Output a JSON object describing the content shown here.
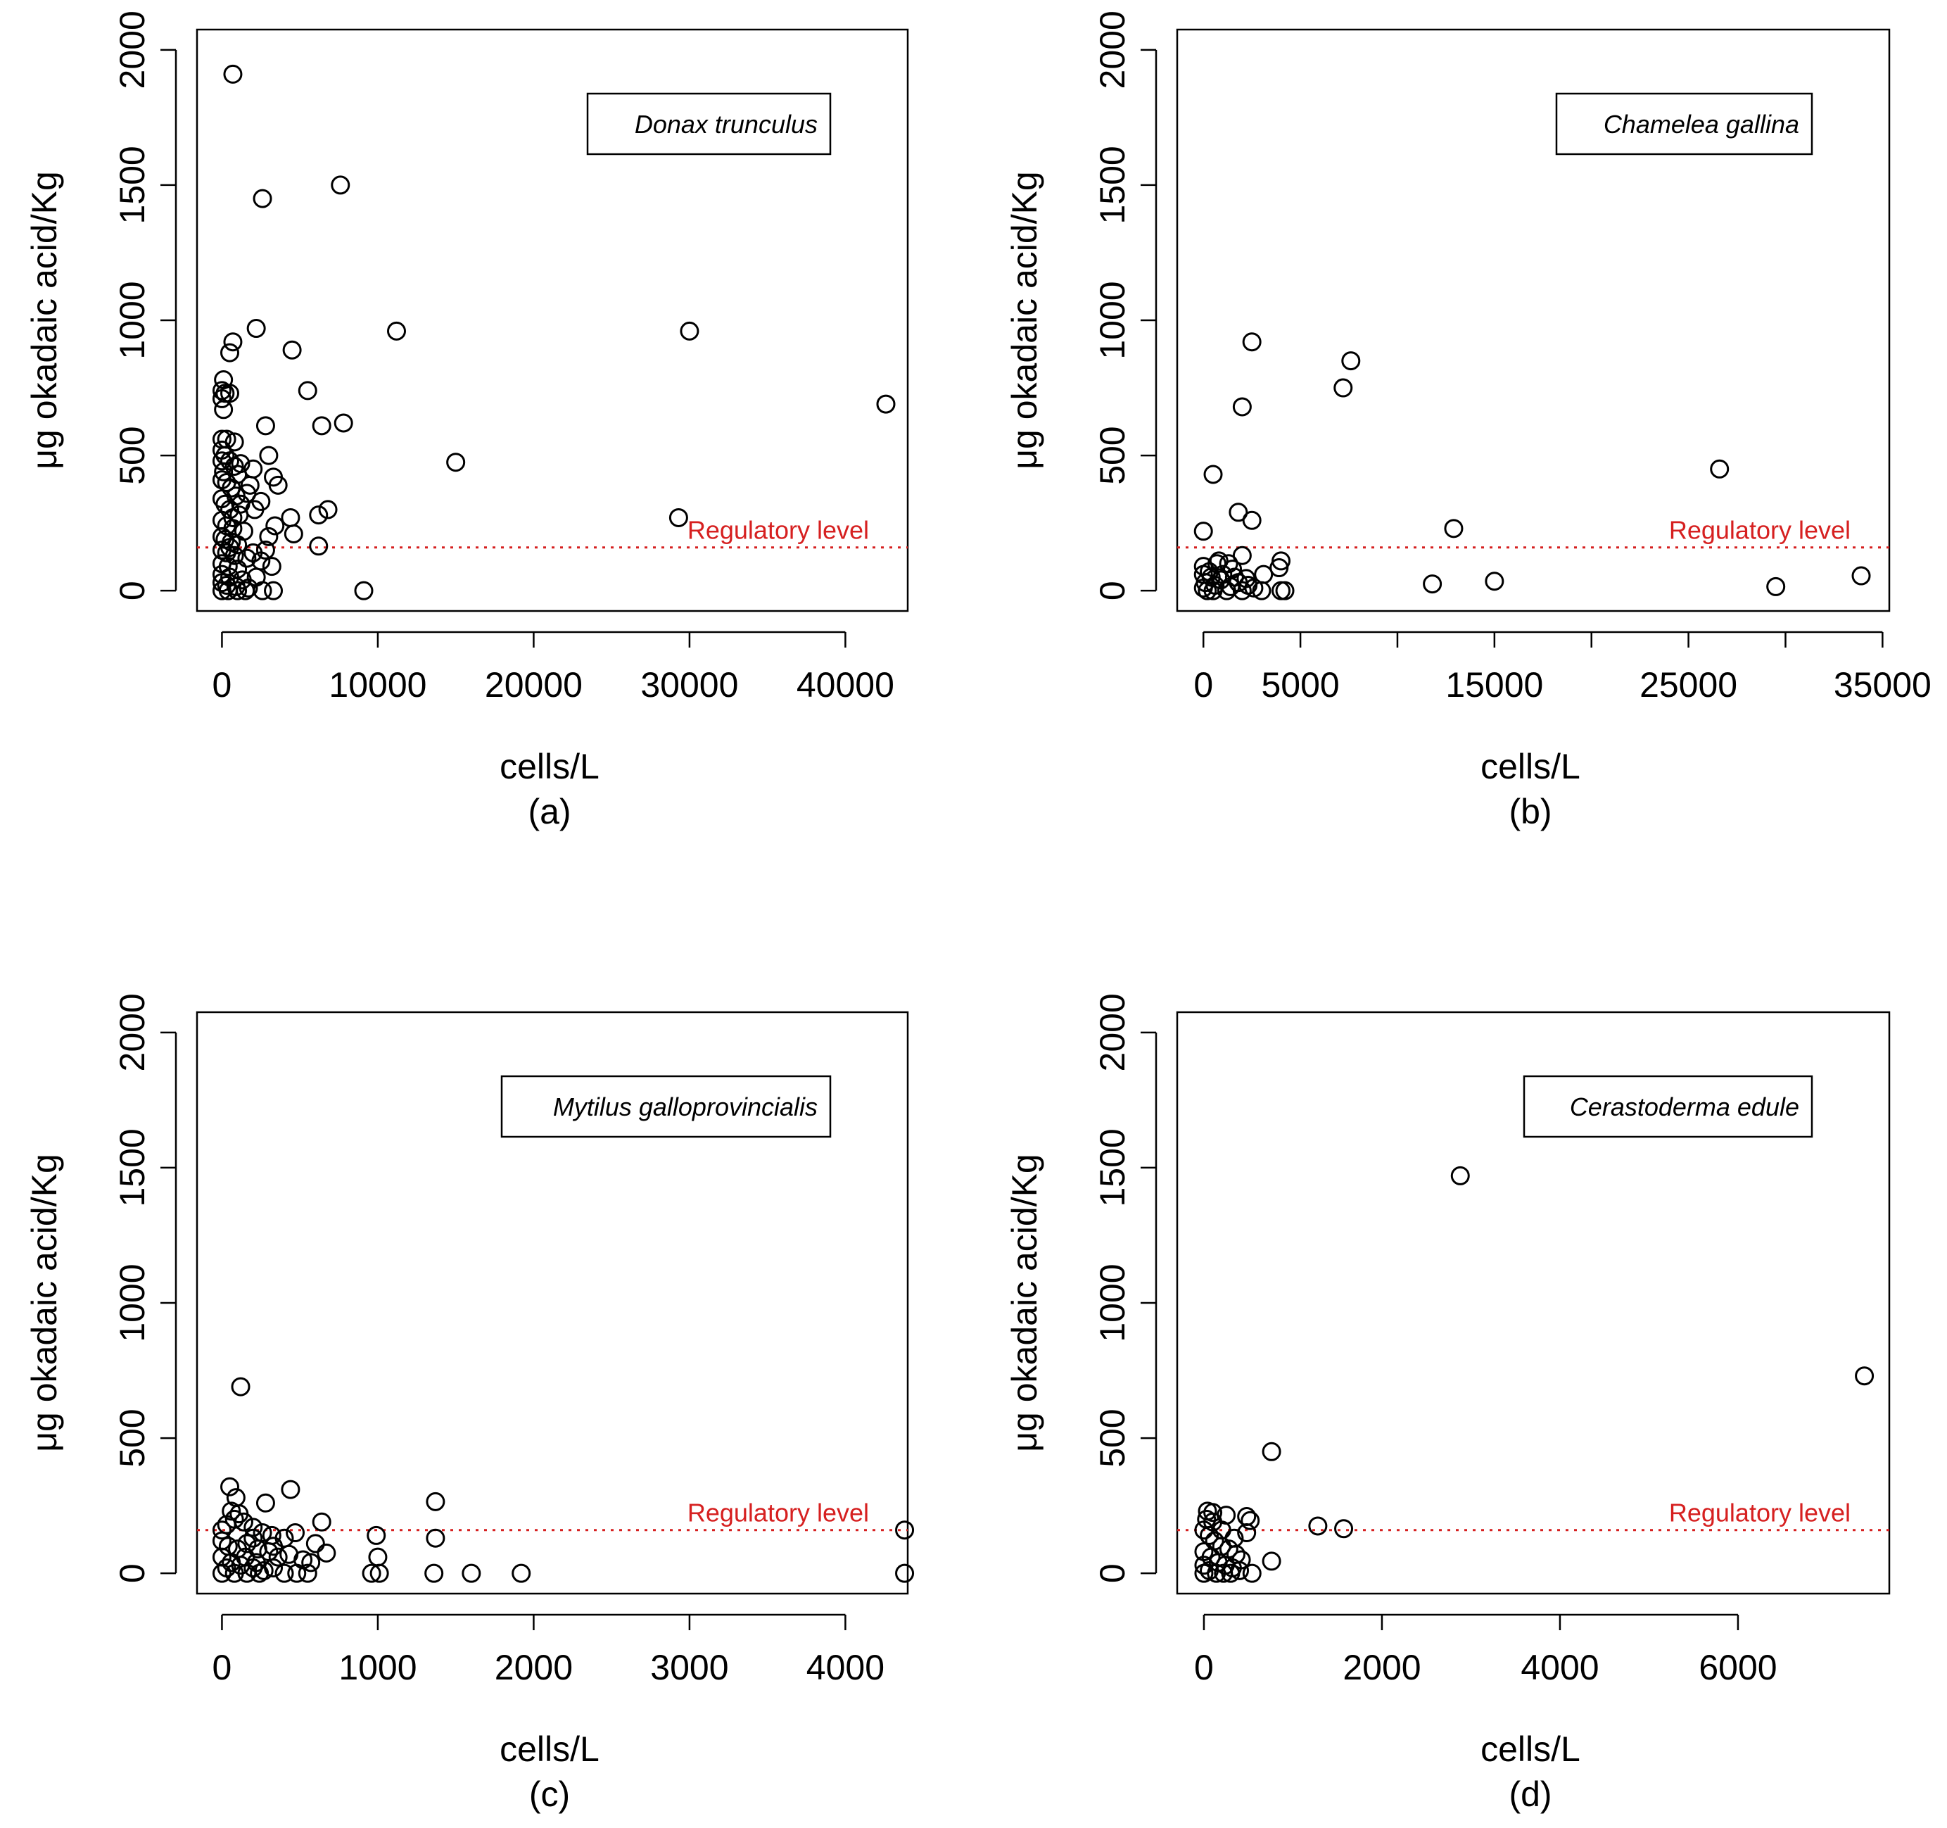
{
  "figure": {
    "y_axis_title": "μg okadaic acid/Kg",
    "x_axis_title": "cells/L",
    "regulatory_label": "Regulatory level",
    "regulatory_value": 160,
    "colors": {
      "points": "#000000",
      "regulatory": "#d62020"
    }
  },
  "chart_data": [
    {
      "id": "a",
      "panel_label": "(a)",
      "type": "scatter",
      "species": "Donax trunculus",
      "xlabel": "cells/L",
      "ylabel": "μg okadaic acid/Kg",
      "xlim": [
        -1600,
        44000
      ],
      "ylim": [
        -75,
        2075
      ],
      "xticks": [
        0,
        10000,
        20000,
        30000,
        40000
      ],
      "yticks": [
        0,
        500,
        1000,
        1500,
        2000
      ],
      "regulatory_level": 160,
      "points": [
        [
          700,
          1910
        ],
        [
          2600,
          1450
        ],
        [
          7600,
          1500
        ],
        [
          2200,
          970
        ],
        [
          700,
          920
        ],
        [
          500,
          880
        ],
        [
          4500,
          890
        ],
        [
          11200,
          960
        ],
        [
          30000,
          960
        ],
        [
          42600,
          690
        ],
        [
          5500,
          740
        ],
        [
          100,
          780
        ],
        [
          0,
          740
        ],
        [
          200,
          730
        ],
        [
          500,
          730
        ],
        [
          0,
          710
        ],
        [
          100,
          670
        ],
        [
          2800,
          610
        ],
        [
          6400,
          610
        ],
        [
          7800,
          620
        ],
        [
          0,
          560
        ],
        [
          300,
          560
        ],
        [
          800,
          550
        ],
        [
          3000,
          500
        ],
        [
          15000,
          475
        ],
        [
          1200,
          470
        ],
        [
          2000,
          450
        ],
        [
          3300,
          420
        ],
        [
          3600,
          390
        ],
        [
          1800,
          390
        ],
        [
          6800,
          300
        ],
        [
          6200,
          280
        ],
        [
          4400,
          270
        ],
        [
          29300,
          270
        ],
        [
          3400,
          240
        ],
        [
          4600,
          210
        ],
        [
          6200,
          165
        ],
        [
          9100,
          0
        ],
        [
          2500,
          330
        ],
        [
          1600,
          360
        ],
        [
          2100,
          300
        ],
        [
          0,
          520
        ],
        [
          200,
          500
        ],
        [
          500,
          480
        ],
        [
          800,
          460
        ],
        [
          1000,
          430
        ],
        [
          0,
          410
        ],
        [
          300,
          400
        ],
        [
          600,
          380
        ],
        [
          900,
          350
        ],
        [
          0,
          340
        ],
        [
          200,
          320
        ],
        [
          500,
          300
        ],
        [
          1100,
          280
        ],
        [
          0,
          260
        ],
        [
          300,
          240
        ],
        [
          700,
          230
        ],
        [
          1400,
          220
        ],
        [
          0,
          200
        ],
        [
          200,
          190
        ],
        [
          600,
          180
        ],
        [
          1000,
          170
        ],
        [
          0,
          150
        ],
        [
          300,
          140
        ],
        [
          800,
          130
        ],
        [
          1600,
          120
        ],
        [
          2500,
          110
        ],
        [
          0,
          100
        ],
        [
          400,
          90
        ],
        [
          1000,
          80
        ],
        [
          3200,
          90
        ],
        [
          0,
          60
        ],
        [
          500,
          50
        ],
        [
          1300,
          40
        ],
        [
          2200,
          50
        ],
        [
          0,
          30
        ],
        [
          300,
          20
        ],
        [
          900,
          15
        ],
        [
          1700,
          10
        ],
        [
          2600,
          0
        ],
        [
          3300,
          0
        ],
        [
          0,
          0
        ],
        [
          400,
          0
        ],
        [
          1000,
          0
        ],
        [
          1500,
          0
        ],
        [
          3000,
          200
        ],
        [
          2800,
          150
        ],
        [
          2000,
          140
        ],
        [
          100,
          440
        ],
        [
          700,
          270
        ],
        [
          1200,
          320
        ],
        [
          0,
          480
        ],
        [
          500,
          160
        ]
      ]
    },
    {
      "id": "b",
      "panel_label": "(b)",
      "type": "scatter",
      "species": "Chamelea gallina",
      "xlabel": "cells/L",
      "ylabel": "μg okadaic acid/Kg",
      "xlim": [
        -1350,
        35350
      ],
      "ylim": [
        -75,
        2075
      ],
      "xticks": [
        0,
        5000,
        10000,
        15000,
        20000,
        25000,
        30000,
        35000
      ],
      "xtick_labels": [
        "0",
        "5000",
        "",
        "15000",
        "",
        "25000",
        "",
        "35000"
      ],
      "yticks": [
        0,
        500,
        1000,
        1500,
        2000
      ],
      "regulatory_level": 160,
      "points": [
        [
          2500,
          920
        ],
        [
          7600,
          850
        ],
        [
          7200,
          750
        ],
        [
          2000,
          680
        ],
        [
          26600,
          450
        ],
        [
          500,
          430
        ],
        [
          12900,
          230
        ],
        [
          0,
          220
        ],
        [
          1800,
          290
        ],
        [
          2500,
          260
        ],
        [
          2000,
          130
        ],
        [
          4000,
          110
        ],
        [
          3900,
          85
        ],
        [
          3100,
          60
        ],
        [
          11800,
          25
        ],
        [
          15000,
          35
        ],
        [
          29500,
          15
        ],
        [
          33900,
          55
        ],
        [
          4000,
          0
        ],
        [
          4200,
          0
        ],
        [
          3000,
          0
        ],
        [
          700,
          100
        ],
        [
          1500,
          80
        ],
        [
          0,
          60
        ],
        [
          400,
          50
        ],
        [
          900,
          40
        ],
        [
          1800,
          30
        ],
        [
          2300,
          20
        ],
        [
          0,
          10
        ],
        [
          500,
          0
        ],
        [
          1200,
          0
        ],
        [
          2000,
          0
        ],
        [
          0,
          90
        ],
        [
          300,
          70
        ],
        [
          1000,
          60
        ],
        [
          1600,
          50
        ],
        [
          2200,
          45
        ],
        [
          600,
          20
        ],
        [
          1400,
          15
        ],
        [
          2600,
          10
        ],
        [
          100,
          30
        ],
        [
          800,
          110
        ],
        [
          1300,
          100
        ],
        [
          200,
          0
        ]
      ]
    },
    {
      "id": "c",
      "panel_label": "(c)",
      "type": "scatter",
      "species": "Mytilus galloprovincialis",
      "xlabel": "cells/L",
      "ylabel": "μg okadaic acid/Kg",
      "xlim": [
        -160,
        4400
      ],
      "ylim": [
        -75,
        2075
      ],
      "xticks": [
        0,
        1000,
        2000,
        3000,
        4000
      ],
      "yticks": [
        0,
        500,
        1000,
        1500,
        2000
      ],
      "regulatory_level": 160,
      "points": [
        [
          120,
          690
        ],
        [
          50,
          320
        ],
        [
          440,
          310
        ],
        [
          1370,
          265
        ],
        [
          90,
          280
        ],
        [
          280,
          260
        ],
        [
          60,
          230
        ],
        [
          110,
          220
        ],
        [
          640,
          190
        ],
        [
          4380,
          160
        ],
        [
          1370,
          130
        ],
        [
          990,
          140
        ],
        [
          1000,
          60
        ],
        [
          670,
          75
        ],
        [
          600,
          110
        ],
        [
          0,
          160
        ],
        [
          30,
          180
        ],
        [
          80,
          200
        ],
        [
          140,
          190
        ],
        [
          200,
          170
        ],
        [
          260,
          150
        ],
        [
          320,
          140
        ],
        [
          400,
          130
        ],
        [
          470,
          150
        ],
        [
          0,
          120
        ],
        [
          40,
          100
        ],
        [
          100,
          90
        ],
        [
          160,
          110
        ],
        [
          230,
          90
        ],
        [
          300,
          80
        ],
        [
          360,
          60
        ],
        [
          430,
          70
        ],
        [
          520,
          50
        ],
        [
          570,
          40
        ],
        [
          0,
          60
        ],
        [
          60,
          40
        ],
        [
          120,
          30
        ],
        [
          200,
          20
        ],
        [
          270,
          10
        ],
        [
          330,
          20
        ],
        [
          400,
          0
        ],
        [
          480,
          0
        ],
        [
          550,
          0
        ],
        [
          0,
          0
        ],
        [
          80,
          0
        ],
        [
          160,
          0
        ],
        [
          240,
          0
        ],
        [
          960,
          0
        ],
        [
          1010,
          0
        ],
        [
          1360,
          0
        ],
        [
          1600,
          0
        ],
        [
          1920,
          0
        ],
        [
          4380,
          0
        ],
        [
          30,
          20
        ],
        [
          150,
          60
        ],
        [
          220,
          40
        ],
        [
          330,
          100
        ],
        [
          200,
          130
        ]
      ]
    },
    {
      "id": "d",
      "panel_label": "(d)",
      "type": "scatter",
      "species": "Cerastoderma edule",
      "xlabel": "cells/L",
      "ylabel": "μg okadaic acid/Kg",
      "xlim": [
        -300,
        7700
      ],
      "ylim": [
        -75,
        2075
      ],
      "xticks": [
        0,
        2000,
        4000,
        6000
      ],
      "yticks": [
        0,
        500,
        1000,
        1500,
        2000
      ],
      "regulatory_level": 160,
      "points": [
        [
          2880,
          1470
        ],
        [
          7420,
          730
        ],
        [
          760,
          450
        ],
        [
          40,
          230
        ],
        [
          100,
          225
        ],
        [
          250,
          215
        ],
        [
          480,
          210
        ],
        [
          520,
          195
        ],
        [
          1280,
          175
        ],
        [
          1570,
          165
        ],
        [
          340,
          130
        ],
        [
          480,
          150
        ],
        [
          760,
          45
        ],
        [
          540,
          0
        ],
        [
          0,
          160
        ],
        [
          60,
          140
        ],
        [
          120,
          120
        ],
        [
          200,
          100
        ],
        [
          280,
          90
        ],
        [
          360,
          70
        ],
        [
          420,
          50
        ],
        [
          0,
          80
        ],
        [
          80,
          60
        ],
        [
          160,
          40
        ],
        [
          240,
          30
        ],
        [
          320,
          20
        ],
        [
          400,
          10
        ],
        [
          0,
          30
        ],
        [
          60,
          10
        ],
        [
          140,
          0
        ],
        [
          220,
          0
        ],
        [
          300,
          0
        ],
        [
          0,
          0
        ],
        [
          100,
          190
        ],
        [
          200,
          160
        ],
        [
          30,
          200
        ]
      ]
    }
  ]
}
